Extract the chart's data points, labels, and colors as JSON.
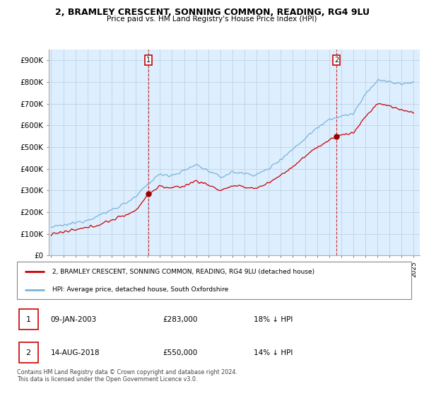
{
  "title": "2, BRAMLEY CRESCENT, SONNING COMMON, READING, RG4 9LU",
  "subtitle": "Price paid vs. HM Land Registry's House Price Index (HPI)",
  "ylim": [
    0,
    950000
  ],
  "yticks": [
    0,
    100000,
    200000,
    300000,
    400000,
    500000,
    600000,
    700000,
    800000,
    900000
  ],
  "ytick_labels": [
    "£0",
    "£100K",
    "£200K",
    "£300K",
    "£400K",
    "£500K",
    "£600K",
    "£700K",
    "£800K",
    "£900K"
  ],
  "hpi_color": "#7ab4d8",
  "price_color": "#cc0000",
  "chart_bg": "#ddeeff",
  "marker1_date": 2003.04,
  "marker1_price": 283000,
  "marker2_date": 2018.62,
  "marker2_price": 550000,
  "legend_line1": "2, BRAMLEY CRESCENT, SONNING COMMON, READING, RG4 9LU (detached house)",
  "legend_line2": "HPI: Average price, detached house, South Oxfordshire",
  "table_row1_num": "1",
  "table_row1_date": "09-JAN-2003",
  "table_row1_price": "£283,000",
  "table_row1_hpi": "18% ↓ HPI",
  "table_row2_num": "2",
  "table_row2_date": "14-AUG-2018",
  "table_row2_price": "£550,000",
  "table_row2_hpi": "14% ↓ HPI",
  "footer": "Contains HM Land Registry data © Crown copyright and database right 2024.\nThis data is licensed under the Open Government Licence v3.0.",
  "background_color": "#ffffff",
  "grid_color": "#bbccdd",
  "hpi_anchors_x": [
    1995,
    1996,
    1997,
    1998,
    1999,
    2000,
    2001,
    2002,
    2003,
    2004,
    2005,
    2006,
    2007,
    2008,
    2009,
    2010,
    2011,
    2012,
    2013,
    2014,
    2015,
    2016,
    2017,
    2018,
    2019,
    2020,
    2021,
    2022,
    2023,
    2024,
    2025
  ],
  "hpi_anchors_y": [
    130000,
    138000,
    150000,
    165000,
    185000,
    210000,
    238000,
    268000,
    330000,
    375000,
    370000,
    390000,
    420000,
    390000,
    360000,
    385000,
    378000,
    372000,
    400000,
    445000,
    490000,
    540000,
    590000,
    630000,
    640000,
    655000,
    740000,
    810000,
    800000,
    790000,
    800000
  ],
  "price_anchors_x": [
    1995,
    1996,
    1997,
    1998,
    1999,
    2000,
    2001,
    2002,
    2003.04,
    2004,
    2005,
    2006,
    2007,
    2008,
    2009,
    2010,
    2011,
    2012,
    2013,
    2014,
    2015,
    2016,
    2017,
    2018.62,
    2019,
    2020,
    2021,
    2022,
    2023,
    2024,
    2025
  ],
  "price_anchors_y": [
    100000,
    107000,
    117000,
    128000,
    143000,
    163000,
    183000,
    208000,
    283000,
    320000,
    310000,
    320000,
    345000,
    325000,
    300000,
    320000,
    315000,
    310000,
    335000,
    370000,
    410000,
    455000,
    500000,
    550000,
    555000,
    565000,
    640000,
    700000,
    690000,
    670000,
    660000
  ]
}
